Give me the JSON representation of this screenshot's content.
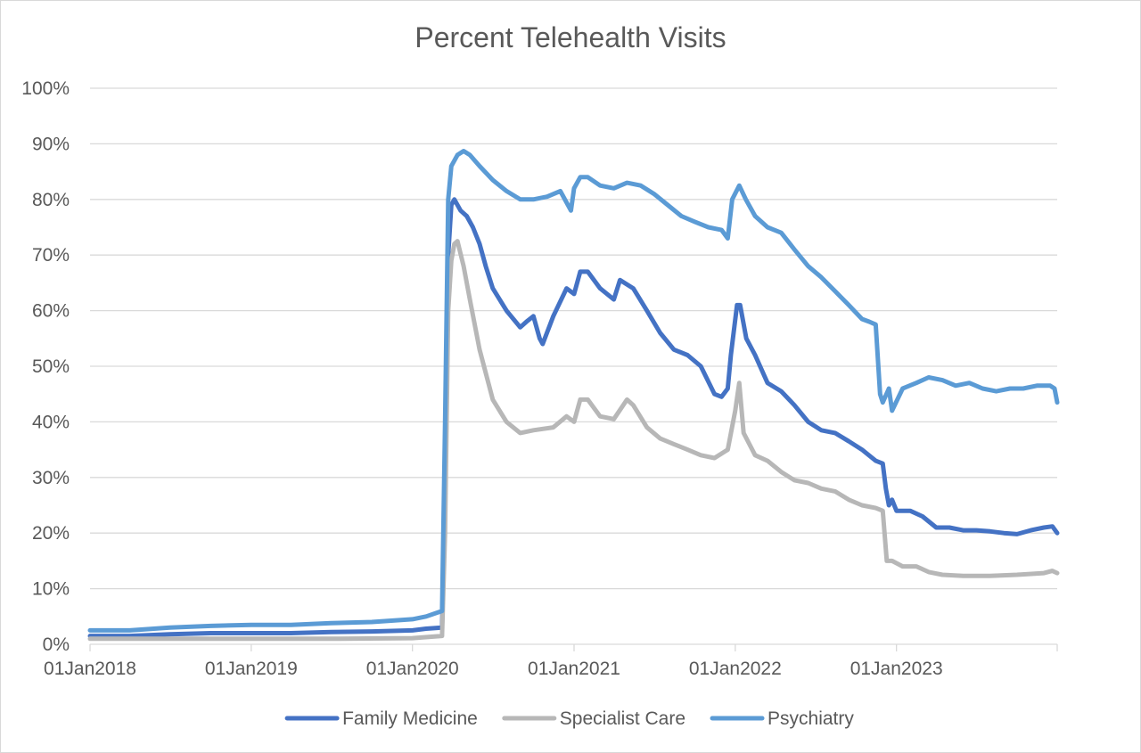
{
  "chart_data": {
    "type": "line",
    "title": "Percent Telehealth Visits",
    "xlabel": "",
    "ylabel": "",
    "xlim": [
      "2018-01-01",
      "2023-12-31"
    ],
    "ylim": [
      0,
      100
    ],
    "y_unit": "%",
    "grid": "horizontal",
    "legend_position": "bottom",
    "x_tick_labels": [
      "01Jan2018",
      "01Jan2019",
      "01Jan2020",
      "01Jan2021",
      "01Jan2022",
      "01Jan2023"
    ],
    "y_tick_labels": [
      "0%",
      "10%",
      "20%",
      "30%",
      "40%",
      "50%",
      "60%",
      "70%",
      "80%",
      "90%",
      "100%"
    ],
    "series": [
      {
        "name": "Family Medicine",
        "color": "#4472c4",
        "points": [
          [
            "2018-01-01",
            1.5
          ],
          [
            "2018-04-01",
            1.5
          ],
          [
            "2018-07-01",
            1.8
          ],
          [
            "2018-10-01",
            2
          ],
          [
            "2019-01-01",
            2
          ],
          [
            "2019-04-01",
            2
          ],
          [
            "2019-07-01",
            2.2
          ],
          [
            "2019-10-01",
            2.3
          ],
          [
            "2020-01-01",
            2.5
          ],
          [
            "2020-02-01",
            2.8
          ],
          [
            "2020-03-08",
            3
          ],
          [
            "2020-03-15",
            25
          ],
          [
            "2020-03-22",
            70
          ],
          [
            "2020-03-29",
            79
          ],
          [
            "2020-04-05",
            80
          ],
          [
            "2020-04-19",
            78
          ],
          [
            "2020-05-03",
            77
          ],
          [
            "2020-05-17",
            75
          ],
          [
            "2020-06-01",
            72
          ],
          [
            "2020-06-15",
            68
          ],
          [
            "2020-07-01",
            64
          ],
          [
            "2020-08-01",
            60
          ],
          [
            "2020-09-01",
            57
          ],
          [
            "2020-09-15",
            58
          ],
          [
            "2020-10-01",
            59
          ],
          [
            "2020-10-15",
            55
          ],
          [
            "2020-10-22",
            54
          ],
          [
            "2020-11-15",
            59
          ],
          [
            "2020-12-15",
            64
          ],
          [
            "2021-01-01",
            63
          ],
          [
            "2021-01-15",
            67
          ],
          [
            "2021-02-01",
            67
          ],
          [
            "2021-03-01",
            64
          ],
          [
            "2021-04-01",
            62
          ],
          [
            "2021-04-15",
            65.5
          ],
          [
            "2021-05-15",
            64
          ],
          [
            "2021-06-15",
            60
          ],
          [
            "2021-07-15",
            56
          ],
          [
            "2021-08-15",
            53
          ],
          [
            "2021-09-15",
            52
          ],
          [
            "2021-10-15",
            50
          ],
          [
            "2021-11-15",
            45
          ],
          [
            "2021-12-01",
            44.5
          ],
          [
            "2021-12-15",
            46
          ],
          [
            "2021-12-22",
            52
          ],
          [
            "2022-01-05",
            61
          ],
          [
            "2022-01-12",
            61
          ],
          [
            "2022-01-26",
            55
          ],
          [
            "2022-02-15",
            52
          ],
          [
            "2022-03-15",
            47
          ],
          [
            "2022-04-15",
            45.5
          ],
          [
            "2022-05-15",
            43
          ],
          [
            "2022-06-15",
            40
          ],
          [
            "2022-07-15",
            38.5
          ],
          [
            "2022-08-15",
            38
          ],
          [
            "2022-09-15",
            36.5
          ],
          [
            "2022-10-15",
            35
          ],
          [
            "2022-11-15",
            33
          ],
          [
            "2022-12-01",
            32.5
          ],
          [
            "2022-12-08",
            28
          ],
          [
            "2022-12-15",
            25
          ],
          [
            "2022-12-22",
            26
          ],
          [
            "2023-01-01",
            24
          ],
          [
            "2023-02-01",
            24
          ],
          [
            "2023-03-01",
            23
          ],
          [
            "2023-04-01",
            21
          ],
          [
            "2023-05-01",
            21
          ],
          [
            "2023-06-01",
            20.5
          ],
          [
            "2023-07-01",
            20.5
          ],
          [
            "2023-08-01",
            20.3
          ],
          [
            "2023-09-01",
            20
          ],
          [
            "2023-10-01",
            19.8
          ],
          [
            "2023-11-01",
            20.5
          ],
          [
            "2023-12-01",
            21
          ],
          [
            "2023-12-20",
            21.2
          ],
          [
            "2023-12-31",
            20
          ]
        ]
      },
      {
        "name": "Specialist Care",
        "color": "#b7b7b7",
        "points": [
          [
            "2018-01-01",
            1
          ],
          [
            "2018-07-01",
            1
          ],
          [
            "2019-01-01",
            1
          ],
          [
            "2019-07-01",
            1
          ],
          [
            "2020-01-01",
            1.1
          ],
          [
            "2020-03-08",
            1.5
          ],
          [
            "2020-03-15",
            20
          ],
          [
            "2020-03-22",
            60
          ],
          [
            "2020-03-29",
            69
          ],
          [
            "2020-04-05",
            72
          ],
          [
            "2020-04-12",
            72.5
          ],
          [
            "2020-04-26",
            68
          ],
          [
            "2020-05-10",
            62
          ],
          [
            "2020-06-01",
            53
          ],
          [
            "2020-07-01",
            44
          ],
          [
            "2020-08-01",
            40
          ],
          [
            "2020-09-01",
            38
          ],
          [
            "2020-10-01",
            38.5
          ],
          [
            "2020-11-15",
            39
          ],
          [
            "2020-12-15",
            41
          ],
          [
            "2021-01-01",
            40
          ],
          [
            "2021-01-15",
            44
          ],
          [
            "2021-02-01",
            44
          ],
          [
            "2021-03-01",
            41
          ],
          [
            "2021-04-01",
            40.5
          ],
          [
            "2021-05-01",
            44
          ],
          [
            "2021-05-15",
            43
          ],
          [
            "2021-06-15",
            39
          ],
          [
            "2021-07-15",
            37
          ],
          [
            "2021-08-15",
            36
          ],
          [
            "2021-09-15",
            35
          ],
          [
            "2021-10-15",
            34
          ],
          [
            "2021-11-15",
            33.5
          ],
          [
            "2021-12-15",
            35
          ],
          [
            "2022-01-01",
            42
          ],
          [
            "2022-01-10",
            47
          ],
          [
            "2022-01-20",
            38
          ],
          [
            "2022-02-15",
            34
          ],
          [
            "2022-03-15",
            33
          ],
          [
            "2022-04-15",
            31
          ],
          [
            "2022-05-15",
            29.5
          ],
          [
            "2022-06-15",
            29
          ],
          [
            "2022-07-15",
            28
          ],
          [
            "2022-08-15",
            27.5
          ],
          [
            "2022-09-15",
            26
          ],
          [
            "2022-10-15",
            25
          ],
          [
            "2022-11-15",
            24.5
          ],
          [
            "2022-12-01",
            24
          ],
          [
            "2022-12-10",
            15
          ],
          [
            "2022-12-22",
            15
          ],
          [
            "2023-01-15",
            14
          ],
          [
            "2023-02-15",
            14
          ],
          [
            "2023-03-15",
            13
          ],
          [
            "2023-04-15",
            12.5
          ],
          [
            "2023-06-01",
            12.3
          ],
          [
            "2023-08-01",
            12.3
          ],
          [
            "2023-10-01",
            12.5
          ],
          [
            "2023-12-01",
            12.8
          ],
          [
            "2023-12-20",
            13.2
          ],
          [
            "2023-12-31",
            12.8
          ]
        ]
      },
      {
        "name": "Psychiatry",
        "color": "#5b9bd5",
        "points": [
          [
            "2018-01-01",
            2.5
          ],
          [
            "2018-04-01",
            2.5
          ],
          [
            "2018-07-01",
            3
          ],
          [
            "2018-10-01",
            3.3
          ],
          [
            "2019-01-01",
            3.5
          ],
          [
            "2019-04-01",
            3.5
          ],
          [
            "2019-07-01",
            3.8
          ],
          [
            "2019-10-01",
            4
          ],
          [
            "2020-01-01",
            4.5
          ],
          [
            "2020-02-01",
            5
          ],
          [
            "2020-03-08",
            6
          ],
          [
            "2020-03-15",
            40
          ],
          [
            "2020-03-22",
            80
          ],
          [
            "2020-03-29",
            86
          ],
          [
            "2020-04-12",
            88
          ],
          [
            "2020-04-26",
            88.7
          ],
          [
            "2020-05-10",
            88
          ],
          [
            "2020-06-01",
            86
          ],
          [
            "2020-07-01",
            83.5
          ],
          [
            "2020-08-01",
            81.5
          ],
          [
            "2020-09-01",
            80
          ],
          [
            "2020-10-01",
            80
          ],
          [
            "2020-11-01",
            80.5
          ],
          [
            "2020-12-01",
            81.5
          ],
          [
            "2020-12-25",
            78
          ],
          [
            "2021-01-01",
            82
          ],
          [
            "2021-01-15",
            84
          ],
          [
            "2021-02-01",
            84
          ],
          [
            "2021-03-01",
            82.5
          ],
          [
            "2021-04-01",
            82
          ],
          [
            "2021-05-01",
            83
          ],
          [
            "2021-06-01",
            82.5
          ],
          [
            "2021-07-01",
            81
          ],
          [
            "2021-08-01",
            79
          ],
          [
            "2021-09-01",
            77
          ],
          [
            "2021-10-01",
            76
          ],
          [
            "2021-11-01",
            75
          ],
          [
            "2021-12-01",
            74.5
          ],
          [
            "2021-12-15",
            73
          ],
          [
            "2021-12-25",
            80
          ],
          [
            "2022-01-10",
            82.5
          ],
          [
            "2022-01-25",
            80
          ],
          [
            "2022-02-15",
            77
          ],
          [
            "2022-03-15",
            75
          ],
          [
            "2022-04-15",
            74
          ],
          [
            "2022-05-15",
            71
          ],
          [
            "2022-06-15",
            68
          ],
          [
            "2022-07-15",
            66
          ],
          [
            "2022-08-15",
            63.5
          ],
          [
            "2022-09-15",
            61
          ],
          [
            "2022-10-15",
            58.5
          ],
          [
            "2022-11-01",
            58
          ],
          [
            "2022-11-15",
            57.5
          ],
          [
            "2022-11-25",
            45
          ],
          [
            "2022-12-01",
            43.5
          ],
          [
            "2022-12-15",
            46
          ],
          [
            "2022-12-22",
            42
          ],
          [
            "2023-01-15",
            46
          ],
          [
            "2023-02-15",
            47
          ],
          [
            "2023-03-15",
            48
          ],
          [
            "2023-04-15",
            47.5
          ],
          [
            "2023-05-15",
            46.5
          ],
          [
            "2023-06-15",
            47
          ],
          [
            "2023-07-15",
            46
          ],
          [
            "2023-08-15",
            45.5
          ],
          [
            "2023-09-15",
            46
          ],
          [
            "2023-10-15",
            46
          ],
          [
            "2023-11-15",
            46.5
          ],
          [
            "2023-12-15",
            46.5
          ],
          [
            "2023-12-25",
            46
          ],
          [
            "2023-12-31",
            43.5
          ]
        ]
      }
    ]
  }
}
